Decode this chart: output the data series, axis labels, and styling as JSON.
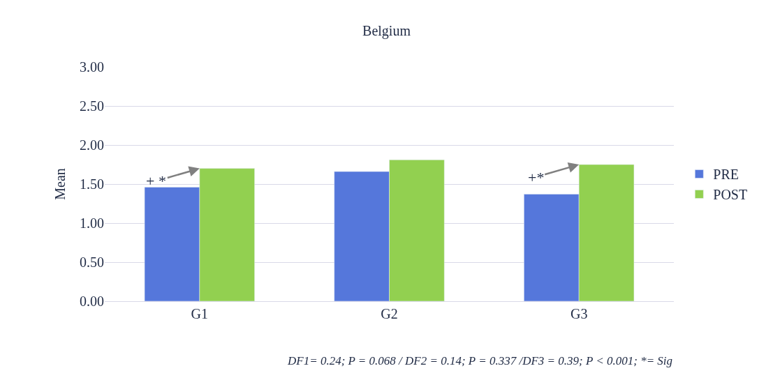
{
  "chart_data": {
    "type": "bar",
    "title": "Belgium",
    "ylabel": "Mean",
    "categories": [
      "G1",
      "G2",
      "G3"
    ],
    "series": [
      {
        "name": "PRE",
        "color": "#5577db",
        "values": [
          1.46,
          1.66,
          1.37
        ]
      },
      {
        "name": "POST",
        "color": "#92d050",
        "values": [
          1.7,
          1.81,
          1.75
        ]
      }
    ],
    "ylim": [
      0,
      3
    ],
    "yticks": [
      {
        "value": 0,
        "label": "0.00"
      },
      {
        "value": 0.5,
        "label": "0.50"
      },
      {
        "value": 1,
        "label": "1.00"
      },
      {
        "value": 1.5,
        "label": "1.50"
      },
      {
        "value": 2,
        "label": "2.00"
      },
      {
        "value": 2.5,
        "label": "2.50"
      },
      {
        "value": 3,
        "label": "3.00"
      }
    ],
    "grid": "y",
    "legend": "right",
    "annotations": [
      {
        "text": "+ *",
        "x": "G1",
        "y": 1.7
      },
      {
        "text": "+*",
        "x": "G3",
        "y": 1.75
      },
      "DF1= 0.24; P = 0.068 / DF2 = 0.14; P = 0.337 /DF3 = 0.39; P < 0.001; *= Sig"
    ]
  }
}
